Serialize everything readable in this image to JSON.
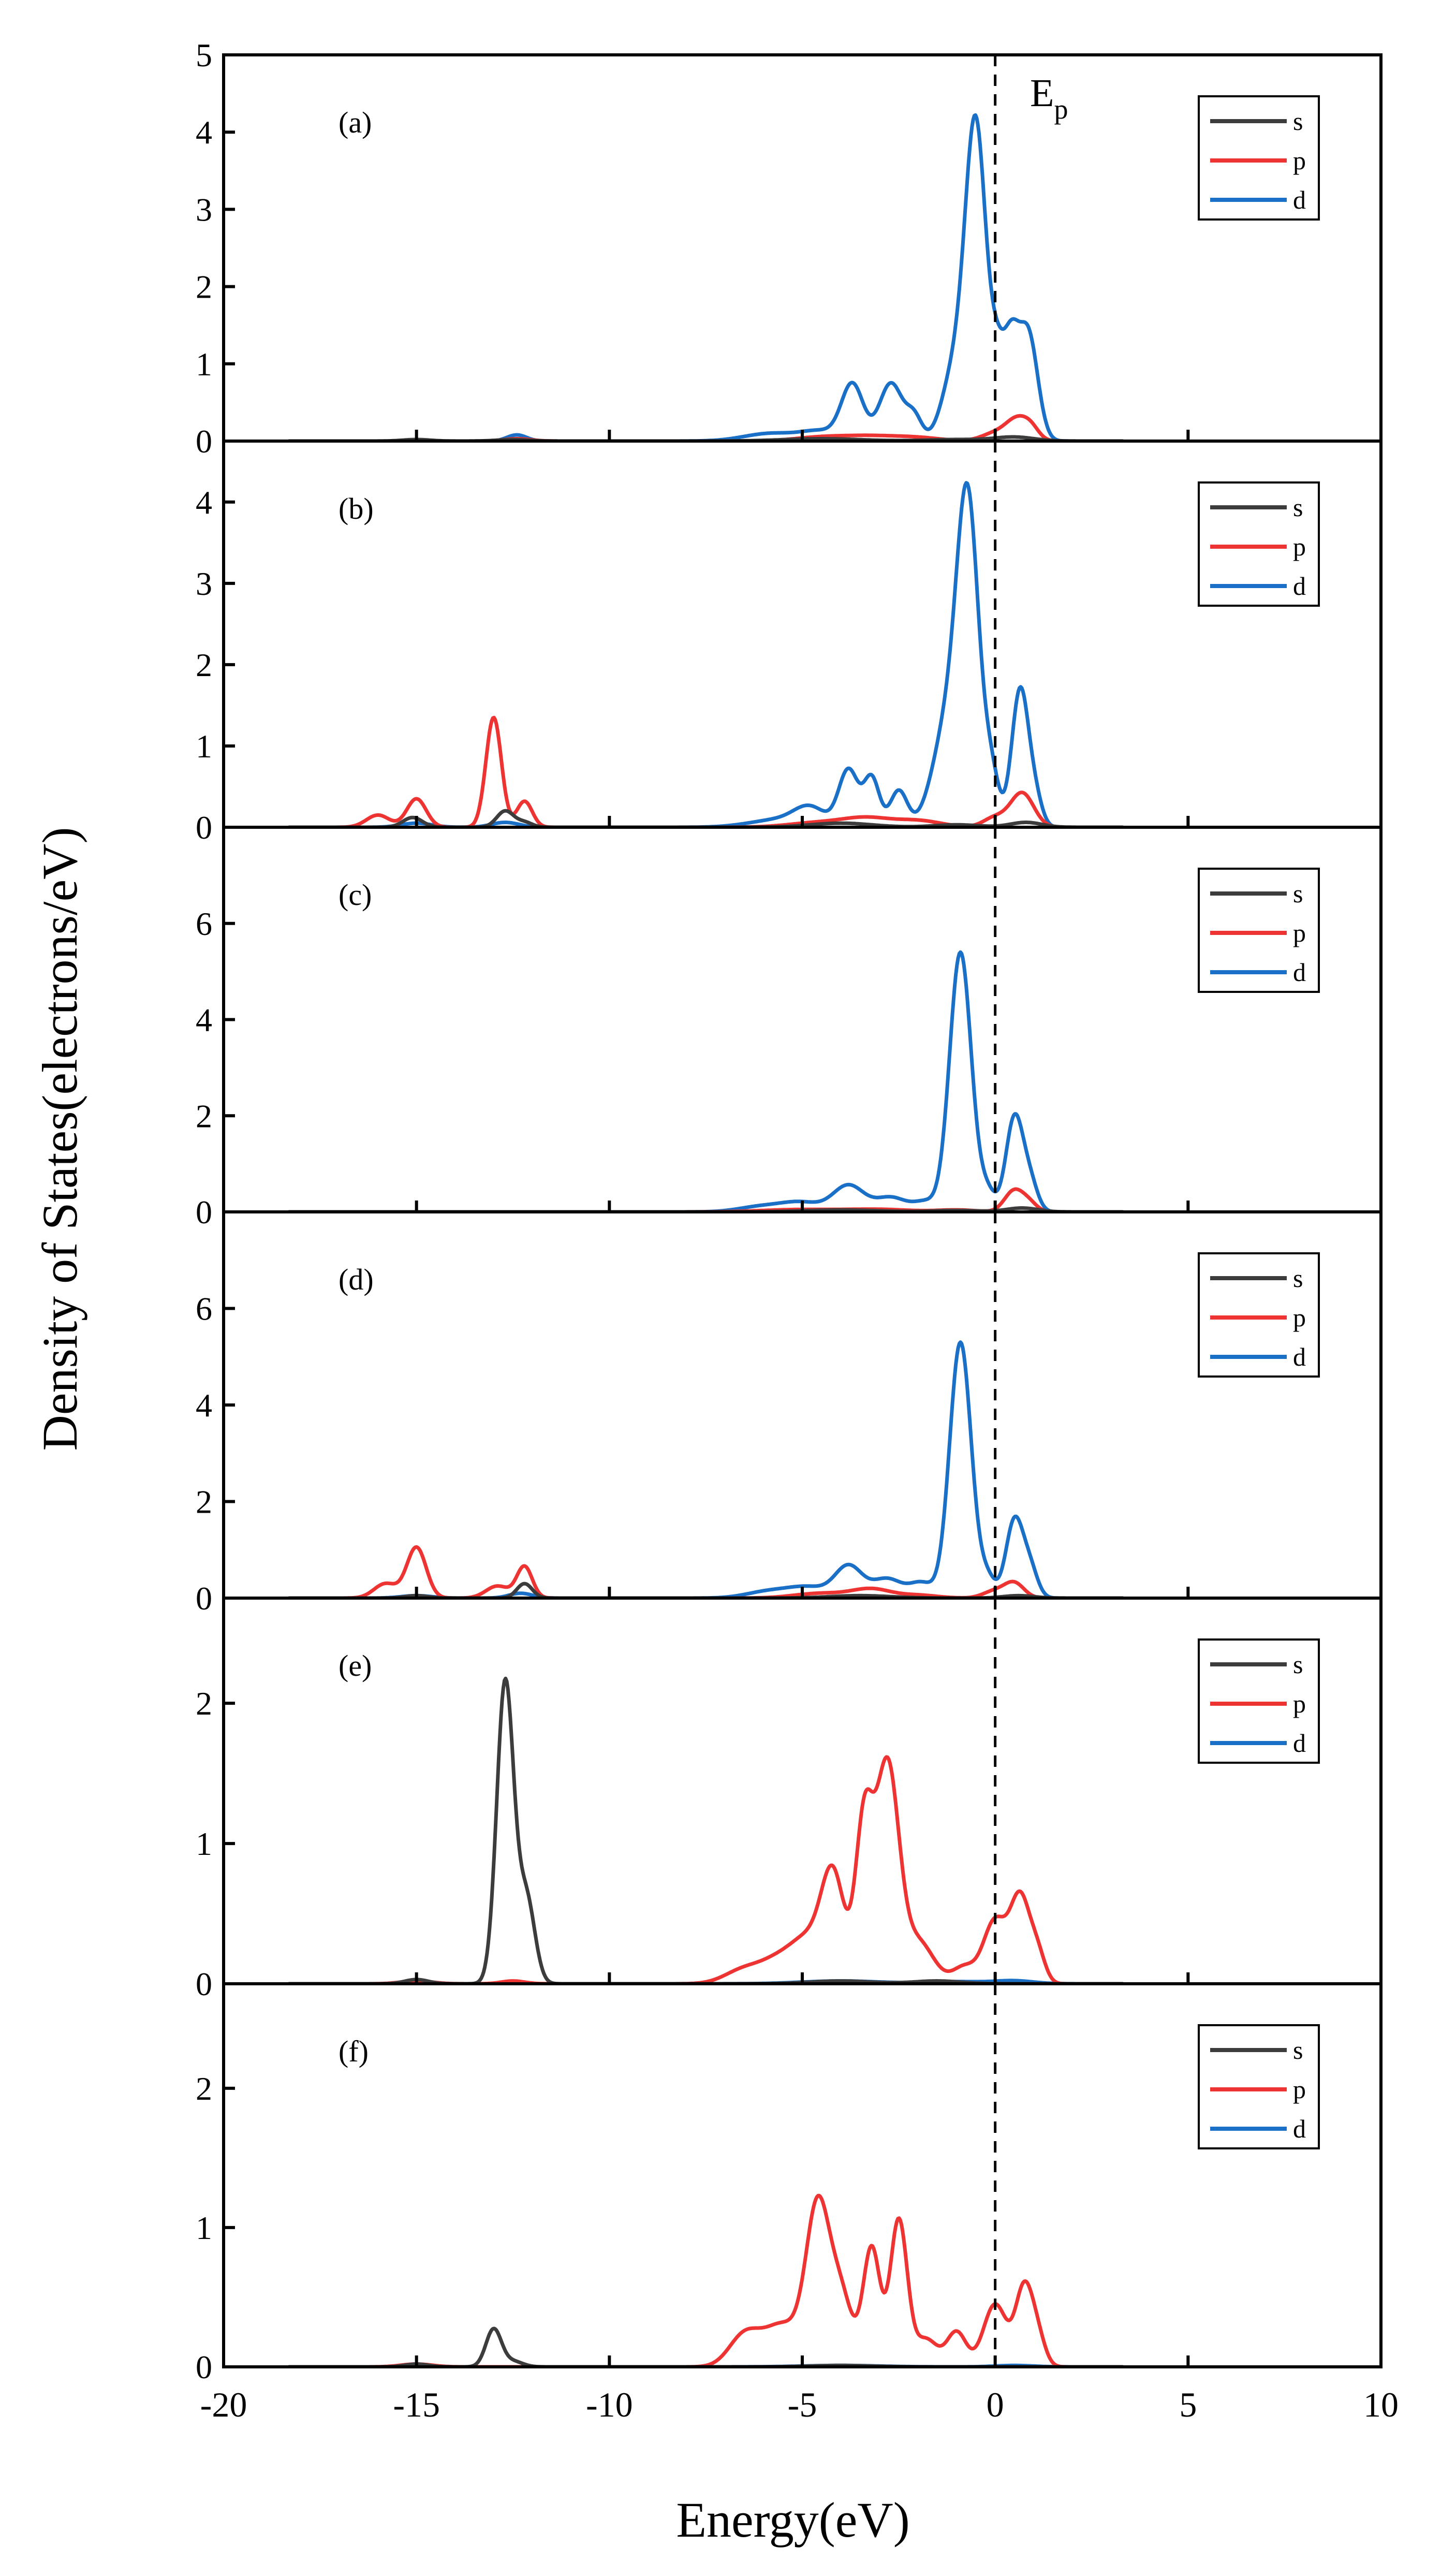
{
  "chart_data": {
    "type": "line",
    "ylabel": "Density of States(electrons/eV)",
    "xlabel": "Energy(eV)",
    "xlim": [
      -20,
      10
    ],
    "xticks": [
      -20,
      -15,
      -10,
      -5,
      0,
      5,
      10
    ],
    "fermi_level": {
      "x": 0,
      "label_main": "E",
      "label_sub": "p"
    },
    "legend_entries": [
      "s",
      "p",
      "d"
    ],
    "colors": {
      "s": "#3c3c3c",
      "p": "#ee3333",
      "d": "#1a6fc6"
    },
    "panels": [
      {
        "label": "(a)",
        "ylim": [
          0,
          5
        ],
        "yticks": [
          0,
          1,
          2,
          3,
          4,
          5
        ],
        "series": [
          {
            "name": "s",
            "peaks": [
              [
                -15.0,
                0.02,
                0.35
              ],
              [
                -12.5,
                0.02,
                0.4
              ],
              [
                -4.5,
                0.03,
                1.0
              ],
              [
                -1.0,
                0.02,
                0.8
              ],
              [
                0.5,
                0.05,
                0.5
              ]
            ]
          },
          {
            "name": "p",
            "peaks": [
              [
                -12.4,
                0.03,
                0.35
              ],
              [
                -4.5,
                0.05,
                0.7
              ],
              [
                -3.2,
                0.06,
                0.7
              ],
              [
                -2.0,
                0.04,
                0.6
              ],
              [
                0.0,
                0.1,
                0.35
              ],
              [
                0.6,
                0.28,
                0.3
              ],
              [
                0.95,
                0.1,
                0.2
              ]
            ]
          },
          {
            "name": "d",
            "peaks": [
              [
                -12.4,
                0.08,
                0.25
              ],
              [
                -5.8,
                0.1,
                0.7
              ],
              [
                -4.5,
                0.12,
                0.5
              ],
              [
                -3.7,
                0.72,
                0.28
              ],
              [
                -2.7,
                0.75,
                0.3
              ],
              [
                -2.1,
                0.3,
                0.2
              ],
              [
                -1.05,
                0.9,
                0.32
              ],
              [
                -0.5,
                4.0,
                0.27
              ],
              [
                0.05,
                0.8,
                0.18
              ],
              [
                0.4,
                1.15,
                0.2
              ],
              [
                0.85,
                1.4,
                0.25
              ]
            ]
          }
        ]
      },
      {
        "label": "(b)",
        "ylim": [
          0,
          4.75
        ],
        "yticks": [
          0,
          1,
          2,
          3,
          4
        ],
        "series": [
          {
            "name": "s",
            "peaks": [
              [
                -15.1,
                0.12,
                0.25
              ],
              [
                -12.7,
                0.2,
                0.22
              ],
              [
                -12.2,
                0.06,
                0.2
              ],
              [
                -4.0,
                0.05,
                0.8
              ],
              [
                -1.0,
                0.03,
                0.6
              ],
              [
                0.8,
                0.06,
                0.4
              ]
            ]
          },
          {
            "name": "p",
            "peaks": [
              [
                -16.0,
                0.15,
                0.3
              ],
              [
                -15.0,
                0.35,
                0.25
              ],
              [
                -13.0,
                1.35,
                0.2
              ],
              [
                -12.2,
                0.32,
                0.2
              ],
              [
                -4.5,
                0.06,
                0.8
              ],
              [
                -3.3,
                0.1,
                0.6
              ],
              [
                -2.0,
                0.08,
                0.6
              ],
              [
                0.0,
                0.12,
                0.3
              ],
              [
                0.7,
                0.42,
                0.3
              ]
            ]
          },
          {
            "name": "d",
            "peaks": [
              [
                -15.0,
                0.05,
                0.4
              ],
              [
                -12.7,
                0.06,
                0.35
              ],
              [
                -5.5,
                0.1,
                0.8
              ],
              [
                -4.8,
                0.2,
                0.4
              ],
              [
                -3.8,
                0.7,
                0.25
              ],
              [
                -3.2,
                0.6,
                0.2
              ],
              [
                -2.5,
                0.45,
                0.22
              ],
              [
                -1.2,
                1.3,
                0.4
              ],
              [
                -0.7,
                3.6,
                0.28
              ],
              [
                -0.1,
                0.6,
                0.2
              ],
              [
                0.65,
                1.7,
                0.22
              ],
              [
                1.05,
                0.3,
                0.18
              ]
            ]
          }
        ]
      },
      {
        "label": "(c)",
        "ylim": [
          0,
          8
        ],
        "yticks": [
          0,
          2,
          4,
          6
        ],
        "series": [
          {
            "name": "s",
            "peaks": [
              [
                -4.0,
                0.04,
                1.0
              ],
              [
                -1.0,
                0.03,
                0.6
              ],
              [
                0.7,
                0.08,
                0.4
              ]
            ]
          },
          {
            "name": "p",
            "peaks": [
              [
                -5.0,
                0.05,
                1.0
              ],
              [
                -3.0,
                0.05,
                0.8
              ],
              [
                -1.0,
                0.04,
                0.5
              ],
              [
                0.5,
                0.45,
                0.25
              ],
              [
                0.9,
                0.15,
                0.2
              ]
            ]
          },
          {
            "name": "d",
            "peaks": [
              [
                -6.0,
                0.12,
                0.6
              ],
              [
                -5.0,
                0.18,
                0.5
              ],
              [
                -3.8,
                0.55,
                0.4
              ],
              [
                -2.7,
                0.3,
                0.4
              ],
              [
                -1.8,
                0.2,
                0.3
              ],
              [
                -0.9,
                5.4,
                0.28
              ],
              [
                -0.2,
                0.4,
                0.2
              ],
              [
                0.5,
                1.95,
                0.22
              ],
              [
                0.9,
                0.6,
                0.2
              ]
            ]
          }
        ]
      },
      {
        "label": "(d)",
        "ylim": [
          0,
          8
        ],
        "yticks": [
          0,
          2,
          4,
          6
        ],
        "series": [
          {
            "name": "s",
            "peaks": [
              [
                -15.0,
                0.05,
                0.3
              ],
              [
                -12.2,
                0.3,
                0.2
              ],
              [
                -3.5,
                0.05,
                0.8
              ],
              [
                0.6,
                0.05,
                0.4
              ]
            ]
          },
          {
            "name": "p",
            "peaks": [
              [
                -15.8,
                0.3,
                0.3
              ],
              [
                -15.0,
                1.05,
                0.25
              ],
              [
                -12.9,
                0.25,
                0.3
              ],
              [
                -12.2,
                0.65,
                0.2
              ],
              [
                -4.5,
                0.1,
                0.7
              ],
              [
                -3.2,
                0.18,
                0.5
              ],
              [
                -2.0,
                0.06,
                0.5
              ],
              [
                0.0,
                0.15,
                0.3
              ],
              [
                0.5,
                0.3,
                0.25
              ]
            ]
          },
          {
            "name": "d",
            "peaks": [
              [
                -15.0,
                0.05,
                0.4
              ],
              [
                -12.3,
                0.1,
                0.3
              ],
              [
                -5.8,
                0.15,
                0.6
              ],
              [
                -4.8,
                0.2,
                0.5
              ],
              [
                -3.8,
                0.65,
                0.35
              ],
              [
                -2.8,
                0.4,
                0.4
              ],
              [
                -1.9,
                0.3,
                0.3
              ],
              [
                -0.9,
                5.3,
                0.28
              ],
              [
                -0.2,
                0.4,
                0.2
              ],
              [
                0.5,
                1.6,
                0.22
              ],
              [
                0.9,
                0.6,
                0.2
              ]
            ]
          }
        ]
      },
      {
        "label": "(e)",
        "ylim": [
          0,
          2.75
        ],
        "yticks": [
          0,
          1,
          2
        ],
        "series": [
          {
            "name": "s",
            "peaks": [
              [
                -12.7,
                2.15,
                0.22
              ],
              [
                -12.15,
                0.6,
                0.22
              ],
              [
                -15.0,
                0.03,
                0.3
              ],
              [
                -4.0,
                0.02,
                0.8
              ],
              [
                -1.5,
                0.02,
                0.6
              ]
            ]
          },
          {
            "name": "p",
            "peaks": [
              [
                -15.0,
                0.02,
                0.4
              ],
              [
                -12.5,
                0.02,
                0.3
              ],
              [
                -6.5,
                0.1,
                0.5
              ],
              [
                -5.5,
                0.18,
                0.5
              ],
              [
                -4.8,
                0.25,
                0.4
              ],
              [
                -4.2,
                0.75,
                0.3
              ],
              [
                -3.4,
                1.1,
                0.22
              ],
              [
                -2.8,
                1.55,
                0.3
              ],
              [
                -2.0,
                0.3,
                0.4
              ],
              [
                -0.8,
                0.12,
                0.3
              ],
              [
                0.0,
                0.45,
                0.3
              ],
              [
                0.65,
                0.6,
                0.25
              ],
              [
                1.1,
                0.2,
                0.2
              ]
            ]
          },
          {
            "name": "d",
            "peaks": [
              [
                -4.0,
                0.02,
                1.0
              ],
              [
                -1.0,
                0.015,
                0.8
              ],
              [
                0.5,
                0.02,
                0.5
              ]
            ]
          }
        ]
      },
      {
        "label": "(f)",
        "ylim": [
          0,
          2.75
        ],
        "yticks": [
          0,
          1,
          2
        ],
        "series": [
          {
            "name": "s",
            "peaks": [
              [
                -13.0,
                0.27,
                0.2
              ],
              [
                -12.5,
                0.04,
                0.25
              ],
              [
                -15.0,
                0.02,
                0.3
              ],
              [
                -4.0,
                0.01,
                0.8
              ]
            ]
          },
          {
            "name": "p",
            "peaks": [
              [
                -15.0,
                0.02,
                0.4
              ],
              [
                -6.5,
                0.22,
                0.4
              ],
              [
                -5.5,
                0.3,
                0.5
              ],
              [
                -4.6,
                1.1,
                0.3
              ],
              [
                -4.0,
                0.5,
                0.3
              ],
              [
                -3.2,
                0.85,
                0.22
              ],
              [
                -2.5,
                1.05,
                0.22
              ],
              [
                -1.8,
                0.2,
                0.3
              ],
              [
                -1.0,
                0.25,
                0.25
              ],
              [
                0.0,
                0.45,
                0.3
              ],
              [
                0.75,
                0.55,
                0.22
              ],
              [
                1.1,
                0.2,
                0.2
              ]
            ]
          },
          {
            "name": "d",
            "peaks": [
              [
                -4.0,
                0.01,
                1.0
              ],
              [
                0.5,
                0.01,
                0.5
              ]
            ]
          }
        ]
      }
    ]
  }
}
